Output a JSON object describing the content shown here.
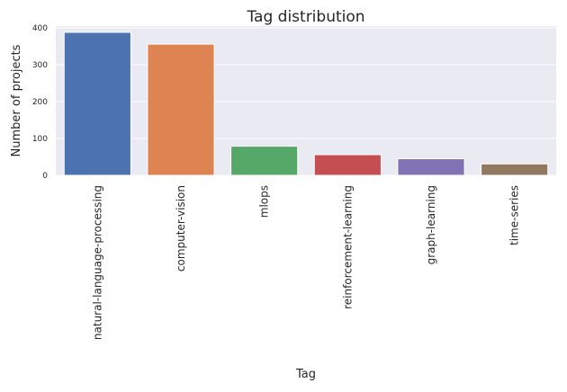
{
  "chart_data": {
    "type": "bar",
    "title": "Tag distribution",
    "xlabel": "Tag",
    "ylabel": "Number of projects",
    "categories": [
      "natural-language-processing",
      "computer-vision",
      "mlops",
      "reinforcement-learning",
      "graph-learning",
      "time-series"
    ],
    "values": [
      388,
      356,
      79,
      56,
      45,
      31
    ],
    "colors": [
      "#4c72b0",
      "#dd8452",
      "#55a868",
      "#c44e52",
      "#8172b3",
      "#937860"
    ],
    "ylim": [
      0,
      405
    ],
    "yticks": [
      0,
      100,
      200,
      300,
      400
    ],
    "grid": true,
    "legend": "none",
    "background": "#eaeaf2",
    "grid_color": "#ffffff"
  }
}
